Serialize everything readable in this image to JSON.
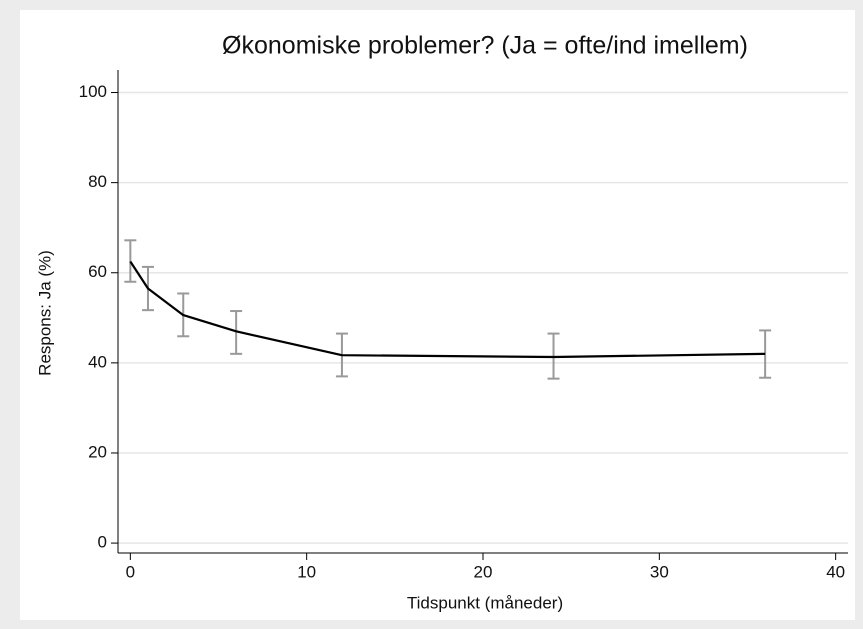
{
  "chart_data": {
    "type": "line",
    "title": "Økonomiske problemer? (Ja = ofte/ind imellem)",
    "x_label": "Tidspunkt (måneder)",
    "y_label": "Respons: Ja (%)",
    "series": [
      {
        "color": "#000000",
        "error_color": "#999999",
        "x": [
          0,
          1,
          3,
          6,
          12,
          24,
          36
        ],
        "values": [
          62.5,
          56.5,
          50.6,
          47.0,
          41.7,
          41.3,
          42.0
        ],
        "lower": [
          58.0,
          51.7,
          45.9,
          42.0,
          37.0,
          36.5,
          36.7
        ],
        "upper": [
          67.2,
          61.3,
          55.4,
          51.5,
          46.5,
          46.5,
          47.2
        ]
      }
    ],
    "xlim": [
      -0.7,
      40.7
    ],
    "ylim": [
      -2.2,
      105.0
    ],
    "xticks": [
      0,
      10,
      20,
      30,
      40
    ],
    "yticks": [
      0,
      20,
      40,
      60,
      80,
      100
    ],
    "grid": true
  }
}
